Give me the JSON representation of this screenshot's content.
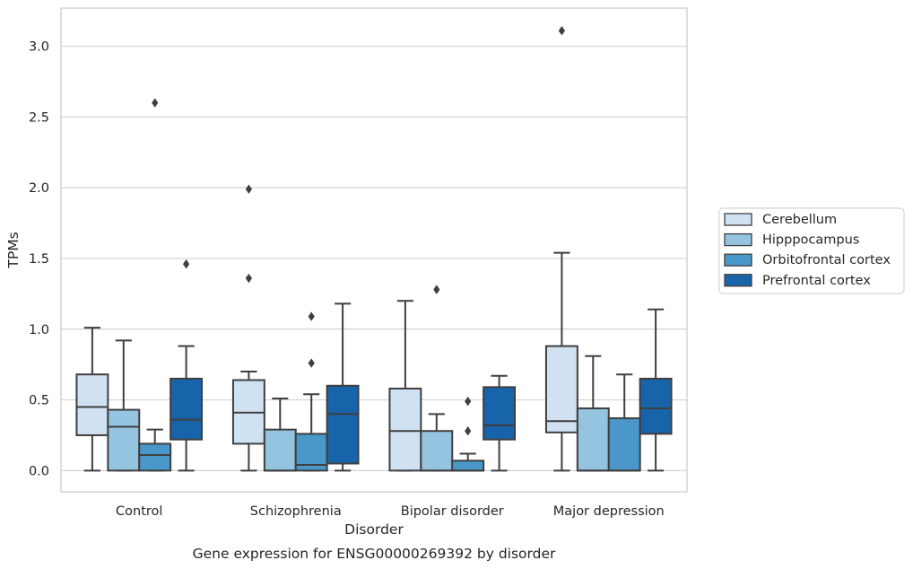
{
  "caption": "Gene expression for ENSG00000269392 by disorder",
  "chart_data": {
    "type": "boxplot",
    "xlabel": "Disorder",
    "ylabel": "TPMs",
    "ylim": [
      -0.15,
      3.27
    ],
    "yticks": [
      "0.0",
      "0.5",
      "1.0",
      "1.5",
      "2.0",
      "2.5",
      "3.0"
    ],
    "grid": "horizontal",
    "legend_position": "right",
    "categories": [
      "Control",
      "Schizophrenia",
      "Bipolar disorder",
      "Major depression"
    ],
    "series": [
      {
        "name": "Cerebellum",
        "color": "#d0e1f2",
        "boxes": [
          {
            "whislo": 0.0,
            "q1": 0.25,
            "med": 0.45,
            "q3": 0.68,
            "whishi": 1.01,
            "fliers": []
          },
          {
            "whislo": 0.0,
            "q1": 0.19,
            "med": 0.41,
            "q3": 0.64,
            "whishi": 0.7,
            "fliers": [
              1.36,
              1.99
            ]
          },
          {
            "whislo": 0.0,
            "q1": 0.0,
            "med": 0.28,
            "q3": 0.58,
            "whishi": 1.2,
            "fliers": []
          },
          {
            "whislo": 0.0,
            "q1": 0.27,
            "med": 0.35,
            "q3": 0.88,
            "whishi": 1.54,
            "fliers": [
              3.11
            ]
          }
        ]
      },
      {
        "name": "Hipppocampus",
        "color": "#94c4df",
        "boxes": [
          {
            "whislo": 0.0,
            "q1": 0.0,
            "med": 0.31,
            "q3": 0.43,
            "whishi": 0.92,
            "fliers": []
          },
          {
            "whislo": 0.0,
            "q1": 0.0,
            "med": 0.0,
            "q3": 0.29,
            "whishi": 0.51,
            "fliers": []
          },
          {
            "whislo": 0.0,
            "q1": 0.0,
            "med": 0.0,
            "q3": 0.28,
            "whishi": 0.4,
            "fliers": [
              1.28
            ]
          },
          {
            "whislo": 0.0,
            "q1": 0.0,
            "med": 0.0,
            "q3": 0.44,
            "whishi": 0.81,
            "fliers": []
          }
        ]
      },
      {
        "name": "Orbitofrontal cortex",
        "color": "#4a98c9",
        "boxes": [
          {
            "whislo": 0.0,
            "q1": 0.0,
            "med": 0.11,
            "q3": 0.19,
            "whishi": 0.29,
            "fliers": [
              2.6
            ]
          },
          {
            "whislo": 0.0,
            "q1": 0.0,
            "med": 0.04,
            "q3": 0.26,
            "whishi": 0.54,
            "fliers": [
              0.76,
              1.09
            ]
          },
          {
            "whislo": 0.0,
            "q1": 0.0,
            "med": 0.0,
            "q3": 0.07,
            "whishi": 0.12,
            "fliers": [
              0.28,
              0.49
            ]
          },
          {
            "whislo": 0.0,
            "q1": 0.0,
            "med": 0.0,
            "q3": 0.37,
            "whishi": 0.68,
            "fliers": []
          }
        ]
      },
      {
        "name": "Prefrontal cortex",
        "color": "#1764ab",
        "boxes": [
          {
            "whislo": 0.0,
            "q1": 0.22,
            "med": 0.36,
            "q3": 0.65,
            "whishi": 0.88,
            "fliers": [
              1.46
            ]
          },
          {
            "whislo": 0.0,
            "q1": 0.05,
            "med": 0.4,
            "q3": 0.6,
            "whishi": 1.18,
            "fliers": []
          },
          {
            "whislo": 0.0,
            "q1": 0.22,
            "med": 0.32,
            "q3": 0.59,
            "whishi": 0.67,
            "fliers": []
          },
          {
            "whislo": 0.0,
            "q1": 0.26,
            "med": 0.44,
            "q3": 0.65,
            "whishi": 1.14,
            "fliers": []
          }
        ]
      }
    ]
  }
}
